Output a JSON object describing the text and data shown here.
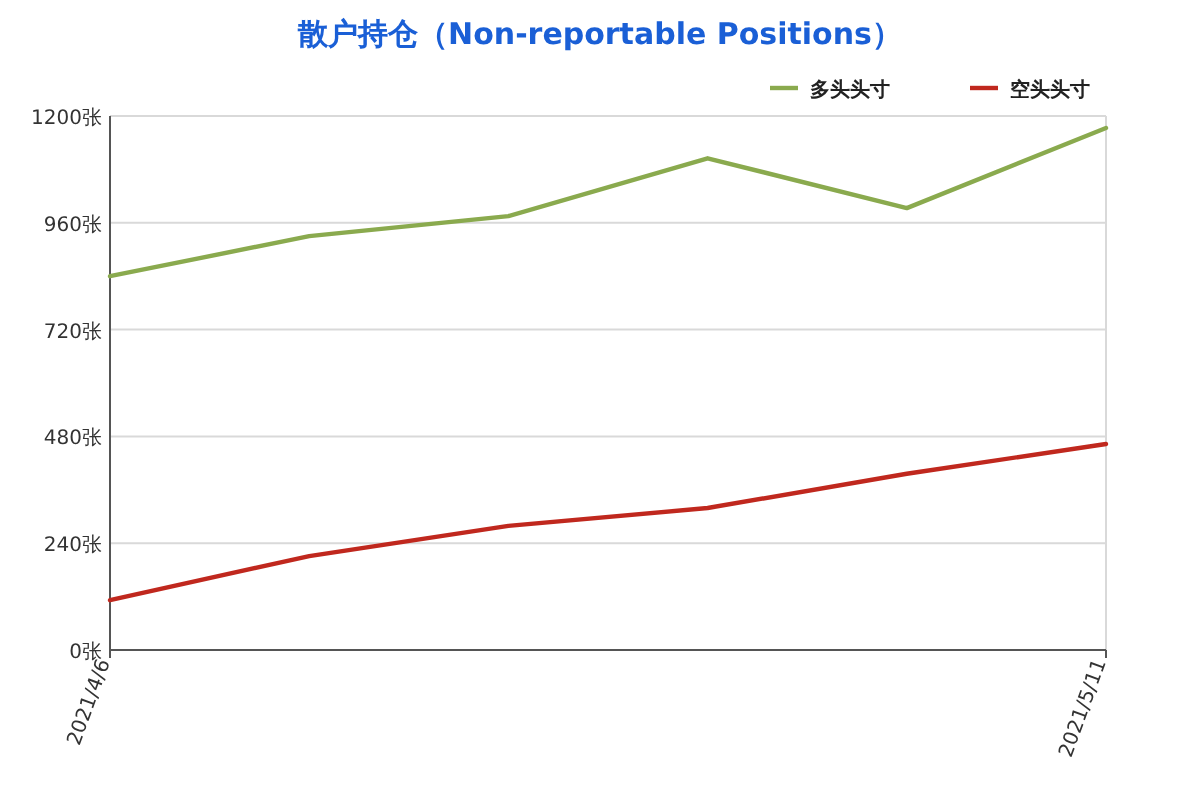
{
  "chart_data": {
    "type": "line",
    "title": "散户持仓（Non-reportable Positions）",
    "x": [
      "2021-04-06",
      "2021-04-13",
      "2021-04-20",
      "2021-04-27",
      "2021-05-04",
      "2021-05-11"
    ],
    "series": [
      {
        "name": "多头头寸",
        "color": "#8aaa4e",
        "values": [
          840,
          930,
          975,
          1105,
          993,
          1173
        ]
      },
      {
        "name": "空头头寸",
        "color": "#c0281e",
        "values": [
          112,
          211,
          279,
          319,
          396,
          463
        ]
      }
    ],
    "xlim": [
      "2021-04-06",
      "2021-05-11"
    ],
    "xticks": [
      {
        "value": "2021-04-06",
        "label": "2021/4/6"
      },
      {
        "value": "2021-05-11",
        "label": "2021/5/11"
      }
    ],
    "ylim": [
      0,
      1200
    ],
    "yticks": [
      {
        "value": 0,
        "label": "0张"
      },
      {
        "value": 240,
        "label": "240张"
      },
      {
        "value": 480,
        "label": "480张"
      },
      {
        "value": 720,
        "label": "720张"
      },
      {
        "value": 960,
        "label": "960张"
      },
      {
        "value": 1200,
        "label": "1200张"
      }
    ],
    "grid": "y",
    "legend": "top right",
    "marker": "none",
    "line_style": "solid"
  }
}
